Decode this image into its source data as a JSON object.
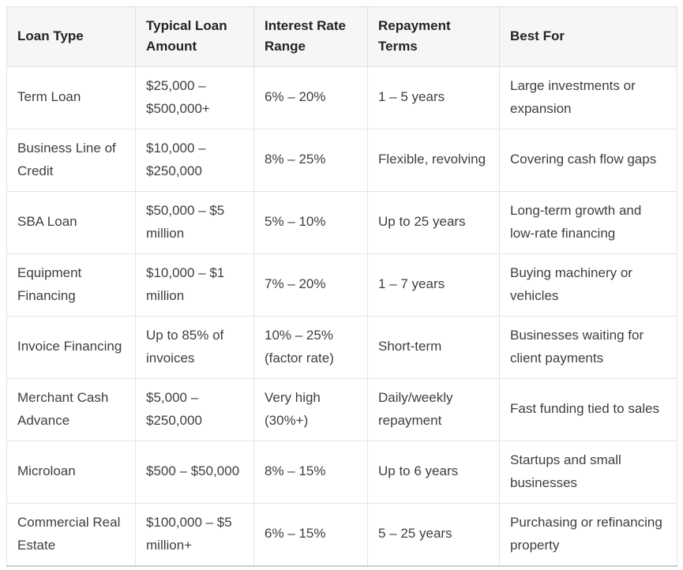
{
  "chart_data": {
    "type": "table",
    "columns": [
      "Loan Type",
      "Typical Loan Amount",
      "Interest Rate Range",
      "Repayment Terms",
      "Best For"
    ],
    "rows": [
      [
        "Term Loan",
        "$25,000 – $500,000+",
        "6% – 20%",
        "1 – 5 years",
        "Large investments or expansion"
      ],
      [
        "Business Line of Credit",
        "$10,000 – $250,000",
        "8% – 25%",
        "Flexible, revolving",
        "Covering cash flow gaps"
      ],
      [
        "SBA Loan",
        "$50,000 – $5 million",
        "5% – 10%",
        "Up to 25 years",
        "Long-term growth and low-rate financing"
      ],
      [
        "Equipment Financing",
        "$10,000 – $1 million",
        "7% – 20%",
        "1 – 7 years",
        "Buying machinery or vehicles"
      ],
      [
        "Invoice Financing",
        "Up to 85% of invoices",
        "10% – 25% (factor rate)",
        "Short-term",
        "Businesses waiting for client payments"
      ],
      [
        "Merchant Cash Advance",
        "$5,000 – $250,000",
        "Very high (30%+)",
        "Daily/weekly repayment",
        "Fast funding tied to sales"
      ],
      [
        "Microloan",
        "$500 – $50,000",
        "8% – 15%",
        "Up to 6 years",
        "Startups and small businesses"
      ],
      [
        "Commercial Real Estate",
        "$100,000 – $5 million+",
        "6% – 15%",
        "5 – 25 years",
        "Purchasing or refinancing property"
      ]
    ],
    "colors": {
      "header_bg": "#f6f6f7",
      "border": "#dfe0e2",
      "bottom_border": "#cbccce",
      "header_text": "#1f2328",
      "body_text": "#3c4043"
    }
  }
}
